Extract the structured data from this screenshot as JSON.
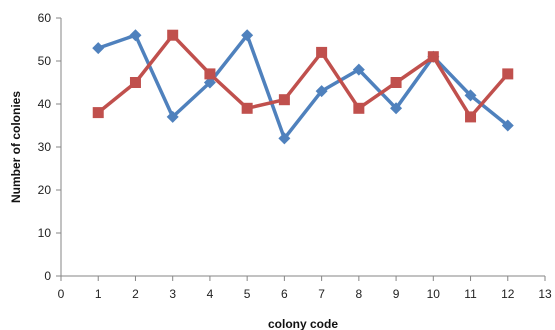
{
  "chart_data": {
    "type": "line",
    "title": "",
    "xlabel": "colony code",
    "ylabel": "Number of colonies",
    "xlim": [
      0,
      13
    ],
    "ylim": [
      0,
      60
    ],
    "x_ticks": [
      "0",
      "1",
      "2",
      "3",
      "4",
      "5",
      "6",
      "7",
      "8",
      "9",
      "10",
      "11",
      "12",
      "13"
    ],
    "y_ticks": [
      "0",
      "10",
      "20",
      "30",
      "40",
      "50",
      "60"
    ],
    "grid": false,
    "legend": "none",
    "x": [
      1,
      2,
      3,
      4,
      5,
      6,
      7,
      8,
      9,
      10,
      11,
      12
    ],
    "series": [
      {
        "color": "#4F81BD",
        "marker": "diamond",
        "values": [
          53,
          56,
          37,
          45,
          56,
          32,
          43,
          48,
          39,
          51,
          42,
          35
        ]
      },
      {
        "color": "#C0504D",
        "marker": "square",
        "values": [
          38,
          45,
          56,
          47,
          39,
          41,
          52,
          39,
          45,
          51,
          37,
          47
        ]
      }
    ]
  }
}
